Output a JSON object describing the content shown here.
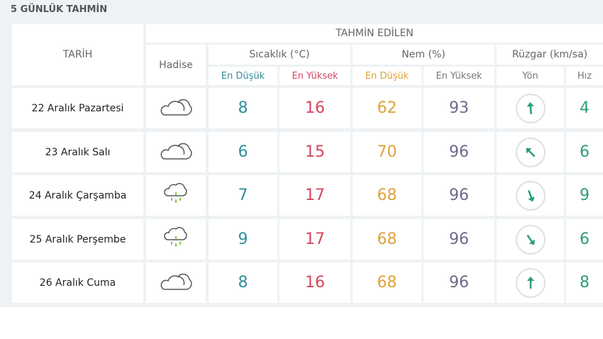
{
  "title": "5 GÜNLÜK TAHMİN",
  "header": {
    "tarih": "TARİH",
    "tahmin": "TAHMİN EDİLEN",
    "hadise": "Hadise",
    "sicaklik": "Sıcaklık (°C)",
    "nem": "Nem (%)",
    "ruzgar": "Rüzgar (km/sa)",
    "en_dusuk": "En Düşük",
    "en_yuksek": "En Yüksek",
    "yon": "Yön",
    "hiz": "Hız"
  },
  "colors": {
    "low": "#2f8e9c",
    "high": "#d6465e",
    "nem_low": "#dfa23a",
    "nem_high": "#6d6a8c",
    "wind": "#2c9c79"
  },
  "rows": [
    {
      "date": "22 Aralık Pazartesi",
      "icon": "cloud-icon",
      "t_low": "8",
      "t_high": "16",
      "n_low": "62",
      "n_high": "93",
      "wind_dir_deg": 175,
      "wind_speed": "4"
    },
    {
      "date": "23 Aralık Salı",
      "icon": "cloud-icon",
      "t_low": "6",
      "t_high": "15",
      "n_low": "70",
      "n_high": "96",
      "wind_dir_deg": 135,
      "wind_speed": "6"
    },
    {
      "date": "24 Aralık Çarşamba",
      "icon": "rain-cloud-icon",
      "t_low": "7",
      "t_high": "17",
      "n_low": "68",
      "n_high": "96",
      "wind_dir_deg": -20,
      "wind_speed": "9"
    },
    {
      "date": "25 Aralık Perşembe",
      "icon": "rain-cloud-icon",
      "t_low": "9",
      "t_high": "17",
      "n_low": "68",
      "n_high": "96",
      "wind_dir_deg": -35,
      "wind_speed": "6"
    },
    {
      "date": "26 Aralık Cuma",
      "icon": "cloud-icon",
      "t_low": "8",
      "t_high": "16",
      "n_low": "68",
      "n_high": "96",
      "wind_dir_deg": 180,
      "wind_speed": "8"
    }
  ]
}
